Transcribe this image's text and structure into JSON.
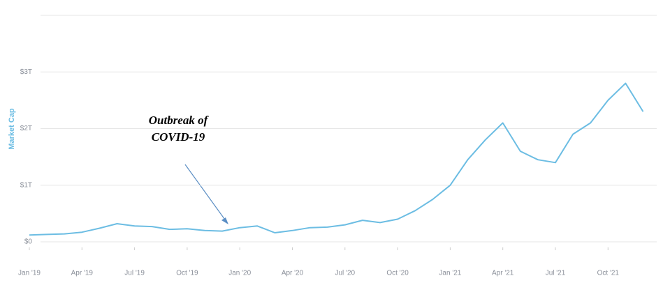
{
  "chart_data": {
    "type": "line",
    "y_label": "Market Cap",
    "annotation": [
      "Outbreak of",
      "COVID-19"
    ],
    "x": [
      "2019-01",
      "2019-02",
      "2019-03",
      "2019-04",
      "2019-05",
      "2019-06",
      "2019-07",
      "2019-08",
      "2019-09",
      "2019-10",
      "2019-11",
      "2019-12",
      "2020-01",
      "2020-02",
      "2020-03",
      "2020-04",
      "2020-05",
      "2020-06",
      "2020-07",
      "2020-08",
      "2020-09",
      "2020-10",
      "2020-11",
      "2020-12",
      "2021-01",
      "2021-02",
      "2021-03",
      "2021-04",
      "2021-05",
      "2021-06",
      "2021-07",
      "2021-08",
      "2021-09",
      "2021-10",
      "2021-11",
      "2021-12"
    ],
    "series": [
      {
        "name": "Market Cap",
        "color": "#6cbde3",
        "values": [
          0.12,
          0.13,
          0.14,
          0.17,
          0.24,
          0.32,
          0.28,
          0.27,
          0.22,
          0.23,
          0.2,
          0.19,
          0.25,
          0.28,
          0.16,
          0.2,
          0.25,
          0.26,
          0.3,
          0.38,
          0.34,
          0.4,
          0.55,
          0.75,
          1.0,
          1.45,
          1.8,
          2.1,
          1.6,
          1.45,
          1.4,
          1.9,
          2.1,
          2.5,
          2.8,
          2.3
        ]
      }
    ],
    "xticks": [
      {
        "value": "2019-01",
        "label": "Jan '19"
      },
      {
        "value": "2019-04",
        "label": "Apr '19"
      },
      {
        "value": "2019-07",
        "label": "Jul '19"
      },
      {
        "value": "2019-10",
        "label": "Oct '19"
      },
      {
        "value": "2020-01",
        "label": "Jan '20"
      },
      {
        "value": "2020-04",
        "label": "Apr '20"
      },
      {
        "value": "2020-07",
        "label": "Jul '20"
      },
      {
        "value": "2020-10",
        "label": "Oct '20"
      },
      {
        "value": "2021-01",
        "label": "Jan '21"
      },
      {
        "value": "2021-04",
        "label": "Apr '21"
      },
      {
        "value": "2021-07",
        "label": "Jul '21"
      },
      {
        "value": "2021-10",
        "label": "Oct '21"
      }
    ],
    "ylim": [
      0,
      4
    ],
    "yticks": [
      {
        "value": 0,
        "label": "$0"
      },
      {
        "value": 1,
        "label": "$1T"
      },
      {
        "value": 2,
        "label": "$2T"
      },
      {
        "value": 3,
        "label": "$3T"
      }
    ],
    "grid": true
  }
}
